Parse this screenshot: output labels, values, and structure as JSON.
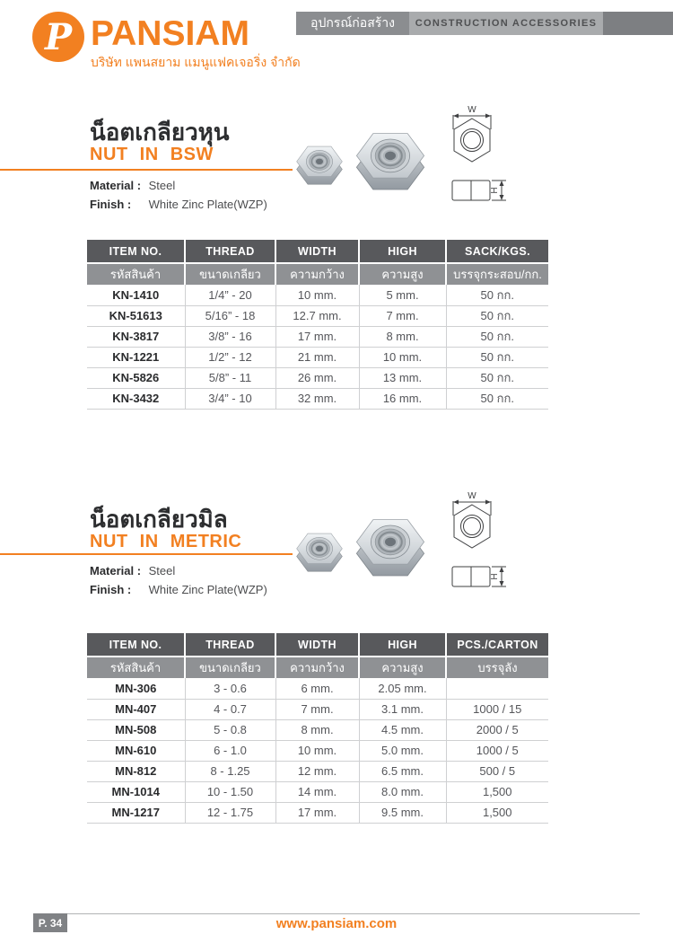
{
  "header": {
    "logo_letter": "P",
    "brand_name": "PANSIAM",
    "company_thai": "บริษัท แพนสยาม แมนูแฟคเจอริ่ง จำกัด",
    "category_thai": "อุปกรณ์ก่อสร้าง",
    "category_english": "CONSTRUCTION ACCESSORIES"
  },
  "colors": {
    "brand_orange": "#f28021",
    "table_head_dark": "#58595c",
    "table_head_light": "#8f9194",
    "bar_medium_gray": "#8b8d90",
    "bar_light_gray": "#a9abad",
    "bar_dark_gray": "#7d7f82"
  },
  "sections": [
    {
      "title_thai": "น็อตเกลียวหุน",
      "title_english": "NUT IN BSW",
      "material_label": "Material :",
      "material_value": "Steel",
      "finish_label": "Finish :",
      "finish_value": "White Zinc Plate(WZP)",
      "diagram": {
        "width_label": "W",
        "height_label": "H"
      },
      "table": {
        "columns_english": [
          "ITEM NO.",
          "THREAD",
          "WIDTH",
          "HIGH",
          "SACK/KGS."
        ],
        "columns_thai": [
          "รหัสสินค้า",
          "ขนาดเกลียว",
          "ความกว้าง",
          "ความสูง",
          "บรรจุกระสอบ/กก."
        ],
        "rows": [
          [
            "KN-1410",
            "1/4” - 20",
            "10 mm.",
            "5 mm.",
            "50 กก."
          ],
          [
            "KN-51613",
            "5/16” - 18",
            "12.7 mm.",
            "7 mm.",
            "50 กก."
          ],
          [
            "KN-3817",
            "3/8” - 16",
            "17 mm.",
            "8 mm.",
            "50 กก."
          ],
          [
            "KN-1221",
            "1/2” - 12",
            "21 mm.",
            "10 mm.",
            "50 กก."
          ],
          [
            "KN-5826",
            "5/8” - 11",
            "26 mm.",
            "13 mm.",
            "50 กก."
          ],
          [
            "KN-3432",
            "3/4” - 10",
            "32 mm.",
            "16 mm.",
            "50 กก."
          ]
        ]
      }
    },
    {
      "title_thai": "น็อตเกลียวมิล",
      "title_english": "NUT IN METRIC",
      "material_label": "Material :",
      "material_value": "Steel",
      "finish_label": "Finish :",
      "finish_value": "White Zinc Plate(WZP)",
      "diagram": {
        "width_label": "W",
        "height_label": "H"
      },
      "table": {
        "columns_english": [
          "ITEM NO.",
          "THREAD",
          "WIDTH",
          "HIGH",
          "PCS./CARTON"
        ],
        "columns_thai": [
          "รหัสสินค้า",
          "ขนาดเกลียว",
          "ความกว้าง",
          "ความสูง",
          "บรรจุลัง"
        ],
        "rows": [
          [
            "MN-306",
            "3 - 0.6",
            "6 mm.",
            "2.05 mm.",
            ""
          ],
          [
            "MN-407",
            "4 - 0.7",
            "7 mm.",
            "3.1 mm.",
            "1000 / 15"
          ],
          [
            "MN-508",
            "5 - 0.8",
            "8 mm.",
            "4.5 mm.",
            "2000 / 5"
          ],
          [
            "MN-610",
            "6 - 1.0",
            "10 mm.",
            "5.0 mm.",
            "1000 / 5"
          ],
          [
            "MN-812",
            "8 - 1.25",
            "12 mm.",
            "6.5 mm.",
            "500 / 5"
          ],
          [
            "MN-1014",
            "10 - 1.50",
            "14 mm.",
            "8.0 mm.",
            "1,500"
          ],
          [
            "MN-1217",
            "12 - 1.75",
            "17 mm.",
            "9.5 mm.",
            "1,500"
          ]
        ]
      }
    }
  ],
  "footer": {
    "page_number": "P. 34",
    "website": "www.pansiam.com"
  }
}
